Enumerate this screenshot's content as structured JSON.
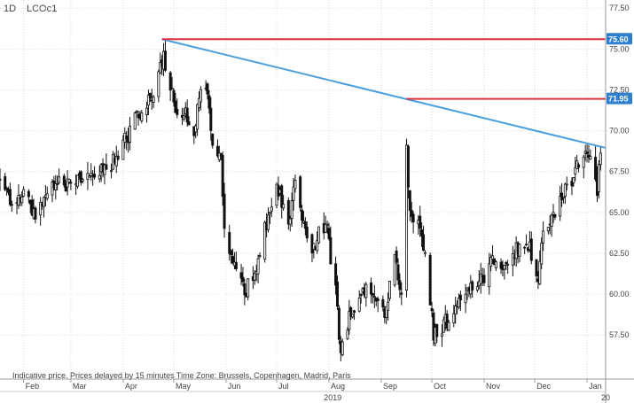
{
  "header": {
    "interval": "1D",
    "symbol": "LCOc1"
  },
  "footer": {
    "disclaimer": "Indicative price. Prices delayed by 15 minutes    Time Zone: Brussels, Copenhagen, Madrid, Paris"
  },
  "colors": {
    "candle": "#111111",
    "trendline": "#4a9fe0",
    "hline": "#e0303c",
    "hline_label_bg": "#2f7fd0",
    "grid": "#dcdcdc",
    "axis": "#999999"
  },
  "chart_data": {
    "type": "candlestick",
    "title": "",
    "xlabel": "",
    "ylabel": "",
    "ylim": [
      54.8,
      78.0
    ],
    "grid": true,
    "y_ticks": [
      77.5,
      75.0,
      72.5,
      70.0,
      67.5,
      65.0,
      62.5,
      60.0,
      57.5
    ],
    "y_tick_labels": [
      "77.50",
      "75.00",
      "72.50",
      "70.00",
      "67.50",
      "65.00",
      "62.50",
      "60.00",
      "57.50"
    ],
    "x_ticks": [
      {
        "label": "Feb",
        "date": "2019-02-01"
      },
      {
        "label": "Mar",
        "date": "2019-03-01"
      },
      {
        "label": "Apr",
        "date": "2019-04-01"
      },
      {
        "label": "May",
        "date": "2019-05-01"
      },
      {
        "label": "Jun",
        "date": "2019-06-01"
      },
      {
        "label": "Jul",
        "date": "2019-07-01"
      },
      {
        "label": "Aug",
        "date": "2019-08-01"
      },
      {
        "label": "Sep",
        "date": "2019-09-01"
      },
      {
        "label": "Oct",
        "date": "2019-10-01"
      },
      {
        "label": "Nov",
        "date": "2019-11-01"
      },
      {
        "label": "Dec",
        "date": "2019-12-01"
      },
      {
        "label": "Jan",
        "date": "2020-01-01"
      }
    ],
    "x_range": [
      "2019-01-18",
      "2020-01-12"
    ],
    "year_label": "2019",
    "year_label_date": "2019-07-29",
    "edge_label": "20",
    "horizontal_lines": [
      {
        "value": 75.6,
        "label": "75.60",
        "start_date": "2019-04-24"
      },
      {
        "value": 71.95,
        "label": "71.95",
        "start_date": "2019-09-16"
      }
    ],
    "trendline": {
      "start_date": "2019-04-24",
      "start_value": 75.6,
      "end_date": "2020-01-12",
      "end_value": 68.95
    },
    "anchors": [
      [
        "2019-01-18",
        66.8
      ],
      [
        "2019-01-25",
        65.3
      ],
      [
        "2019-02-01",
        66.3
      ],
      [
        "2019-02-08",
        64.8
      ],
      [
        "2019-02-14",
        66.1
      ],
      [
        "2019-02-22",
        67.2
      ],
      [
        "2019-03-01",
        66.6
      ],
      [
        "2019-03-08",
        67.1
      ],
      [
        "2019-03-15",
        67.3
      ],
      [
        "2019-03-22",
        67.8
      ],
      [
        "2019-03-29",
        68.4
      ],
      [
        "2019-04-05",
        70.0
      ],
      [
        "2019-04-12",
        71.3
      ],
      [
        "2019-04-19",
        71.9
      ],
      [
        "2019-04-23",
        74.3
      ],
      [
        "2019-04-25",
        74.5
      ],
      [
        "2019-04-30",
        72.3
      ],
      [
        "2019-05-03",
        70.8
      ],
      [
        "2019-05-08",
        71.0
      ],
      [
        "2019-05-13",
        70.2
      ],
      [
        "2019-05-17",
        72.3
      ],
      [
        "2019-05-21",
        72.6
      ],
      [
        "2019-05-24",
        69.2
      ],
      [
        "2019-05-29",
        68.2
      ],
      [
        "2019-05-31",
        64.5
      ],
      [
        "2019-06-05",
        61.7
      ],
      [
        "2019-06-12",
        60.0
      ],
      [
        "2019-06-18",
        61.4
      ],
      [
        "2019-06-25",
        64.4
      ],
      [
        "2019-07-02",
        66.5
      ],
      [
        "2019-07-08",
        64.1
      ],
      [
        "2019-07-12",
        66.7
      ],
      [
        "2019-07-17",
        64.0
      ],
      [
        "2019-07-22",
        62.7
      ],
      [
        "2019-07-30",
        64.5
      ],
      [
        "2019-08-05",
        60.3
      ],
      [
        "2019-08-08",
        56.5
      ],
      [
        "2019-08-14",
        59.1
      ],
      [
        "2019-08-21",
        60.0
      ],
      [
        "2019-08-28",
        60.2
      ],
      [
        "2019-09-03",
        58.6
      ],
      [
        "2019-09-09",
        62.2
      ],
      [
        "2019-09-13",
        60.3
      ],
      [
        "2019-09-16",
        69.0
      ],
      [
        "2019-09-18",
        64.6
      ],
      [
        "2019-09-23",
        64.8
      ],
      [
        "2019-09-27",
        62.0
      ],
      [
        "2019-10-02",
        57.7
      ],
      [
        "2019-10-08",
        58.2
      ],
      [
        "2019-10-15",
        59.0
      ],
      [
        "2019-10-22",
        60.2
      ],
      [
        "2019-10-29",
        60.5
      ],
      [
        "2019-11-05",
        62.2
      ],
      [
        "2019-11-12",
        62.0
      ],
      [
        "2019-11-19",
        62.5
      ],
      [
        "2019-11-26",
        63.5
      ],
      [
        "2019-12-03",
        61.0
      ],
      [
        "2019-12-06",
        64.3
      ],
      [
        "2019-12-12",
        64.7
      ],
      [
        "2019-12-19",
        66.3
      ],
      [
        "2019-12-27",
        67.8
      ],
      [
        "2020-01-03",
        68.5
      ],
      [
        "2020-01-07",
        66.5
      ],
      [
        "2020-01-09",
        68.8
      ]
    ]
  }
}
